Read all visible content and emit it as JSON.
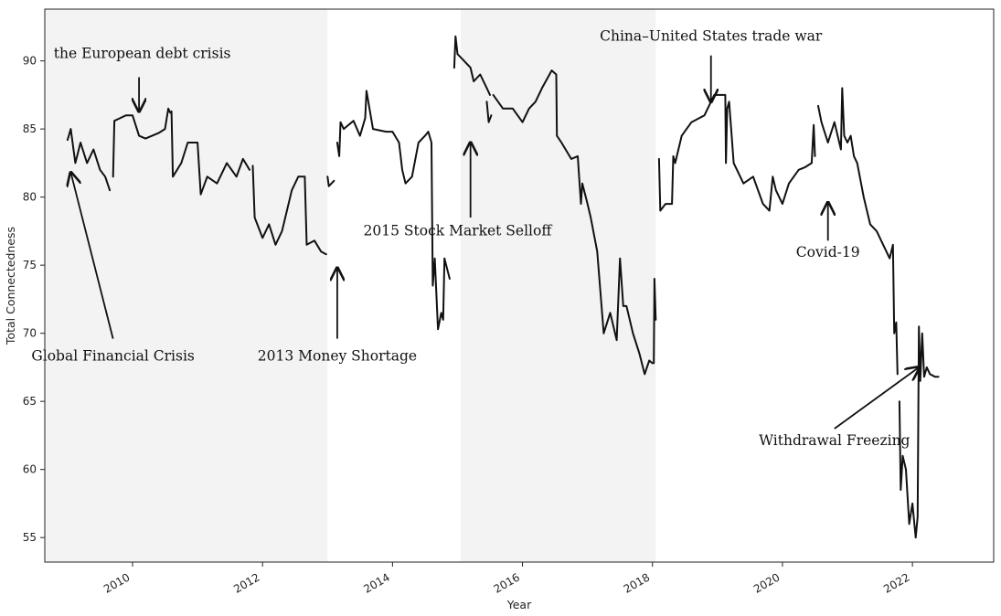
{
  "chart_data": {
    "type": "line",
    "title": "",
    "xlabel": "Year",
    "ylabel": "Total Connectedness",
    "xlim": [
      2008.65,
      2023.25
    ],
    "ylim": [
      53.2,
      93.8
    ],
    "x_ticks": [
      2010,
      2012,
      2014,
      2016,
      2018,
      2020,
      2022
    ],
    "x_tick_labels": [
      "2010",
      "2012",
      "2014",
      "2016",
      "2018",
      "2020",
      "2022"
    ],
    "y_ticks": [
      55,
      60,
      65,
      70,
      75,
      80,
      85,
      90
    ],
    "y_tick_labels": [
      "55",
      "60",
      "65",
      "70",
      "75",
      "80",
      "85",
      "90"
    ],
    "grid": false,
    "shaded_periods": [
      {
        "start": 2008.65,
        "end": 2013.0,
        "color": "#f3f3f3"
      },
      {
        "start": 2015.05,
        "end": 2018.05,
        "color": "#f3f3f3"
      }
    ],
    "series_color": "#111111",
    "segments": [
      {
        "x": [
          2009.0,
          2009.05,
          2009.12,
          2009.2,
          2009.3,
          2009.4,
          2009.5,
          2009.58,
          2009.65
        ],
        "y": [
          84.2,
          85.0,
          82.5,
          84.0,
          82.5,
          83.5,
          82.0,
          81.5,
          80.5
        ]
      },
      {
        "x": [
          2009.7,
          2009.72,
          2009.9,
          2010.0,
          2010.1,
          2010.2,
          2010.4,
          2010.5,
          2010.55,
          2010.58
        ],
        "y": [
          81.5,
          85.6,
          86.0,
          86.0,
          84.5,
          84.3,
          84.7,
          85.0,
          86.5,
          86.2
        ]
      },
      {
        "x": [
          2010.6,
          2010.62,
          2010.75,
          2010.85,
          2011.0,
          2011.05,
          2011.15,
          2011.3,
          2011.45,
          2011.6,
          2011.7,
          2011.8
        ],
        "y": [
          86.3,
          81.5,
          82.5,
          84.0,
          84.0,
          80.2,
          81.5,
          81.0,
          82.5,
          81.5,
          82.8,
          82.0
        ]
      },
      {
        "x": [
          2011.85,
          2011.88,
          2012.0,
          2012.1,
          2012.2,
          2012.3,
          2012.45,
          2012.55,
          2012.65,
          2012.68,
          2012.8,
          2012.9,
          2012.98
        ],
        "y": [
          82.3,
          78.5,
          77.0,
          78.0,
          76.5,
          77.5,
          80.5,
          81.5,
          81.5,
          76.5,
          76.8,
          76.0,
          75.8
        ]
      },
      {
        "x": [
          2013.0,
          2013.02,
          2013.1
        ],
        "y": [
          81.5,
          80.8,
          81.2
        ]
      },
      {
        "x": [
          2013.15,
          2013.18,
          2013.2,
          2013.25,
          2013.4,
          2013.5,
          2013.58,
          2013.6,
          2013.7,
          2013.9,
          2014.0,
          2014.1,
          2014.15,
          2014.2,
          2014.3,
          2014.4,
          2014.5,
          2014.55,
          2014.6,
          2014.62,
          2014.65,
          2014.7,
          2014.75,
          2014.78,
          2014.8,
          2014.88
        ],
        "y": [
          84.0,
          83.0,
          85.5,
          85.0,
          85.6,
          84.5,
          85.8,
          87.8,
          85.0,
          84.8,
          84.8,
          84.0,
          82.0,
          81.0,
          81.5,
          84.0,
          84.5,
          84.8,
          84.0,
          73.5,
          75.5,
          70.3,
          71.5,
          71.0,
          75.5,
          74.0
        ]
      },
      {
        "x": [
          2014.95,
          2014.97,
          2015.0,
          2015.1,
          2015.2,
          2015.25,
          2015.35,
          2015.45,
          2015.5
        ],
        "y": [
          89.5,
          91.8,
          90.5,
          90.0,
          89.5,
          88.5,
          89.0,
          88.0,
          87.5
        ]
      },
      {
        "x": [
          2015.45,
          2015.48,
          2015.52
        ],
        "y": [
          87.0,
          85.5,
          86.0
        ]
      },
      {
        "x": [
          2015.55,
          2015.7,
          2015.85,
          2016.0,
          2016.1,
          2016.2,
          2016.3,
          2016.45,
          2016.52,
          2016.53,
          2016.6,
          2016.75,
          2016.85,
          2016.9,
          2016.92,
          2017.0,
          2017.05,
          2017.15,
          2017.25,
          2017.35,
          2017.45,
          2017.5,
          2017.55,
          2017.6,
          2017.7,
          2017.8,
          2017.88,
          2017.95,
          2018.0
        ],
        "y": [
          87.5,
          86.5,
          86.5,
          85.5,
          86.5,
          87.0,
          88.0,
          89.3,
          89.0,
          84.5,
          84.0,
          82.8,
          83.0,
          79.5,
          81.0,
          79.5,
          78.5,
          76.0,
          70.0,
          71.5,
          69.5,
          75.5,
          72.0,
          72.0,
          70.0,
          68.5,
          67.0,
          68.0,
          67.8
        ]
      },
      {
        "x": [
          2018.02,
          2018.03,
          2018.05
        ],
        "y": [
          67.8,
          74.0,
          71.0
        ]
      },
      {
        "x": [
          2018.1,
          2018.12,
          2018.2,
          2018.3,
          2018.32,
          2018.35,
          2018.45,
          2018.6,
          2018.8,
          2018.95,
          2019.05,
          2019.12,
          2019.13,
          2019.15,
          2019.18,
          2019.25,
          2019.4,
          2019.55,
          2019.7,
          2019.8,
          2019.85,
          2019.9,
          2020.0,
          2020.1,
          2020.25,
          2020.35,
          2020.45,
          2020.48,
          2020.5
        ],
        "y": [
          82.8,
          79.0,
          79.5,
          79.5,
          83.0,
          82.5,
          84.5,
          85.5,
          86.0,
          87.5,
          87.5,
          87.5,
          82.5,
          86.5,
          87.0,
          82.5,
          81.0,
          81.5,
          79.5,
          79.0,
          81.5,
          80.5,
          79.5,
          81.0,
          82.0,
          82.2,
          82.5,
          85.3,
          83.0
        ]
      },
      {
        "x": [
          2020.55,
          2020.6,
          2020.7,
          2020.8,
          2020.9,
          2020.92,
          2020.95,
          2021.0,
          2021.05,
          2021.1,
          2021.15,
          2021.25,
          2021.35,
          2021.45,
          2021.55,
          2021.65,
          2021.7,
          2021.72,
          2021.75,
          2021.77
        ],
        "y": [
          86.7,
          85.5,
          84.0,
          85.5,
          83.5,
          88.0,
          84.5,
          84.0,
          84.5,
          83.0,
          82.5,
          80.0,
          78.0,
          77.5,
          76.5,
          75.5,
          76.5,
          70.0,
          70.8,
          67.0
        ]
      },
      {
        "x": [
          2021.8,
          2021.82,
          2021.85,
          2021.9,
          2021.95,
          2022.0,
          2022.05,
          2022.08,
          2022.1,
          2022.12,
          2022.15,
          2022.18,
          2022.22,
          2022.27,
          2022.35,
          2022.4
        ],
        "y": [
          65.0,
          58.5,
          61.0,
          60.0,
          56.0,
          57.5,
          55.0,
          56.5,
          70.5,
          66.5,
          70.0,
          66.8,
          67.5,
          67.0,
          66.8,
          66.8
        ]
      }
    ],
    "annotations": [
      {
        "text": "the European debt crisis",
        "text_x": 2010.15,
        "text_y": 90.2,
        "arrow_from": [
          2010.1,
          88.8
        ],
        "arrow_to": [
          2010.1,
          86.3
        ]
      },
      {
        "text": "Global Financial Crisis",
        "text_x": 2009.7,
        "text_y": 68.0,
        "arrow_from": [
          2009.7,
          69.6
        ],
        "arrow_to": [
          2009.05,
          81.8
        ]
      },
      {
        "text": "2013 Money Shortage",
        "text_x": 2013.15,
        "text_y": 68.0,
        "arrow_from": [
          2013.15,
          69.6
        ],
        "arrow_to": [
          2013.15,
          74.8
        ]
      },
      {
        "text": "2015 Stock Market Selloff",
        "text_x": 2015.0,
        "text_y": 77.2,
        "arrow_from": [
          2015.2,
          78.5
        ],
        "arrow_to": [
          2015.2,
          84.0
        ]
      },
      {
        "text": "China–United States trade war",
        "text_x": 2018.9,
        "text_y": 91.5,
        "arrow_from": [
          2018.9,
          90.4
        ],
        "arrow_to": [
          2018.9,
          87.0
        ]
      },
      {
        "text": "Covid-19",
        "text_x": 2020.7,
        "text_y": 75.6,
        "arrow_from": [
          2020.7,
          76.8
        ],
        "arrow_to": [
          2020.7,
          79.6
        ]
      },
      {
        "text": "Withdrawal Freezing",
        "text_x": 2020.8,
        "text_y": 61.8,
        "arrow_from": [
          2020.8,
          63.0
        ],
        "arrow_to": [
          2022.1,
          67.5
        ]
      }
    ]
  }
}
